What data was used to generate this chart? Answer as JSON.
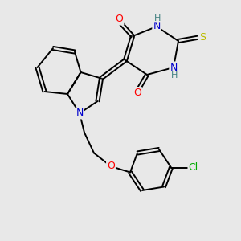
{
  "bg_color": "#e8e8e8",
  "atom_colors": {
    "O": "#ff0000",
    "N": "#0000cc",
    "S": "#bbbb00",
    "Cl": "#00aa00",
    "C": "#000000",
    "H": "#408080"
  },
  "figsize": [
    3.0,
    3.0
  ],
  "dpi": 100
}
